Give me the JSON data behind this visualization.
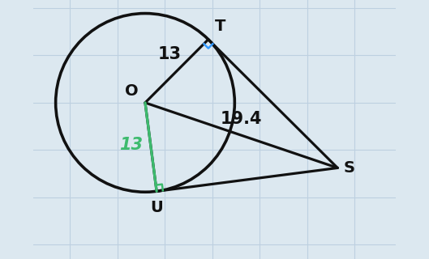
{
  "background_color": "#dce8f0",
  "grid_color": "#bdd0e0",
  "label_O": "O",
  "label_T": "T",
  "label_U": "U",
  "label_S": "S",
  "label_OT": "13",
  "label_OU_green": "13",
  "label_OS": "19.4",
  "line_color_black": "#111111",
  "line_color_green": "#3dbb6e",
  "right_angle_color_blue": "#3399ff",
  "right_angle_color_green": "#3dbb6e",
  "font_size_labels": 14,
  "font_size_numbers": 14,
  "line_width": 2.3,
  "circle_lw": 2.6,
  "O": [
    -0.6,
    0.15
  ],
  "r": 1.0,
  "S": [
    1.55,
    -0.58
  ],
  "figsize": [
    5.29,
    3.2
  ],
  "dpi": 100
}
